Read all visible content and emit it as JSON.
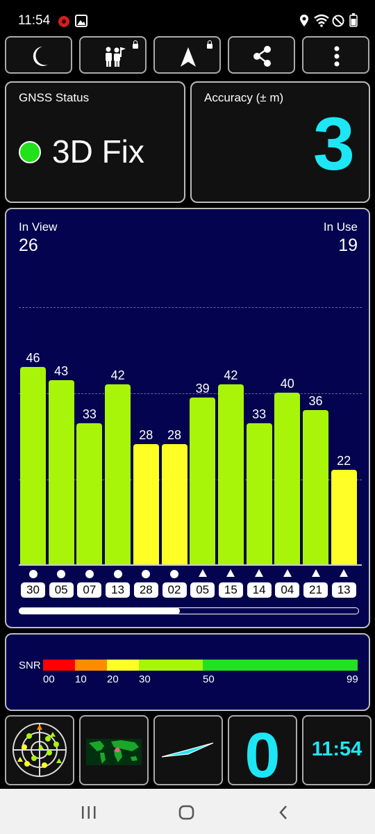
{
  "status_bar": {
    "time": "11:54"
  },
  "gnss_status": {
    "title": "GNSS Status",
    "fix": "3D Fix",
    "fix_color": "#22e01a"
  },
  "accuracy": {
    "title": "Accuracy (± m)",
    "value": "3"
  },
  "sky": {
    "in_view_label": "In View",
    "in_view": "26",
    "in_use_label": "In Use",
    "in_use": "19"
  },
  "chart_data": {
    "type": "bar",
    "categories": [
      "30",
      "05",
      "07",
      "13",
      "28",
      "02",
      "05",
      "15",
      "14",
      "04",
      "21",
      "13"
    ],
    "values": [
      46,
      43,
      33,
      42,
      28,
      28,
      39,
      42,
      33,
      40,
      36,
      22
    ],
    "symbols": [
      "circle",
      "circle",
      "circle",
      "circle",
      "circle",
      "circle",
      "triangle",
      "triangle",
      "triangle",
      "triangle",
      "triangle",
      "triangle"
    ],
    "ylim": [
      0,
      60
    ],
    "colors": {
      "strong": "#a8f50a",
      "weak": "#ffff26"
    }
  },
  "snr": {
    "label": "SNR",
    "ticks": [
      "00",
      "10",
      "20",
      "30",
      "50",
      "99"
    ],
    "colors": [
      "#ff0000",
      "#ff8c00",
      "#ffff26",
      "#a8f50a",
      "#23e023"
    ]
  },
  "bottom_bar": {
    "satellites_used": "0",
    "clock": "11:54"
  },
  "icons": [
    "night-mode-icon",
    "sharing-icon",
    "navigation-icon",
    "share-icon",
    "more-icon",
    "sky-view-icon",
    "world-map-icon",
    "compass-icon"
  ],
  "accent_color": "#1de7f4"
}
